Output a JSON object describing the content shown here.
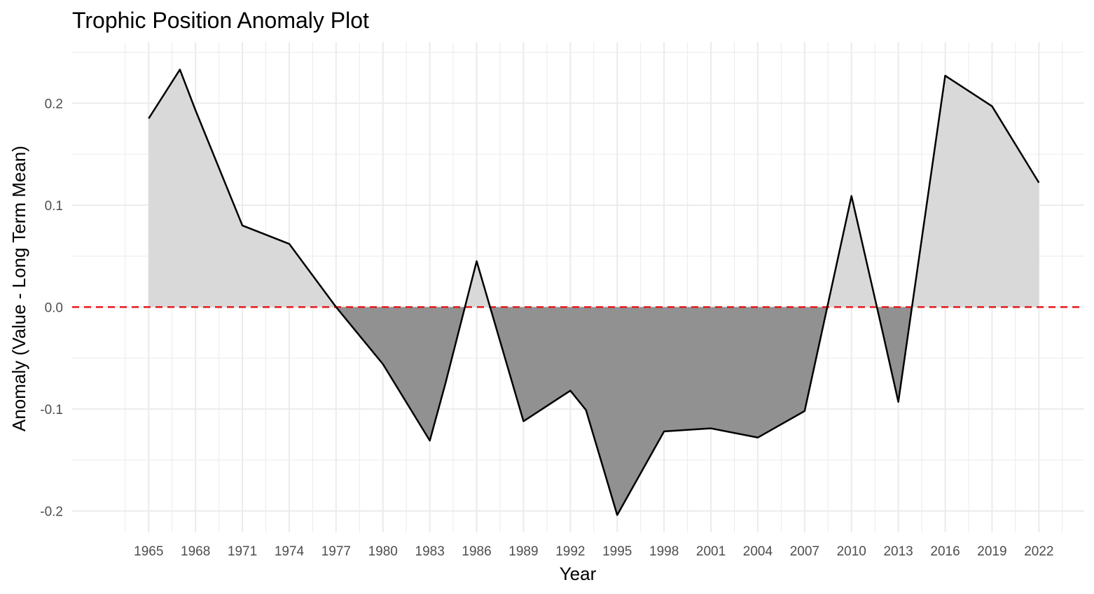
{
  "chart_data": {
    "type": "area",
    "title": "Trophic Position Anomaly Plot",
    "xlabel": "Year",
    "ylabel": "Anomaly (Value - Long Term Mean)",
    "xlim": [
      1960.1,
      2024.9
    ],
    "ylim": [
      -0.221,
      0.26
    ],
    "x_ticks": [
      1965,
      1968,
      1971,
      1974,
      1977,
      1980,
      1983,
      1986,
      1989,
      1992,
      1995,
      1998,
      2001,
      2004,
      2007,
      2010,
      2013,
      2016,
      2019,
      2022
    ],
    "y_ticks": [
      -0.2,
      -0.1,
      0.0,
      0.1,
      0.2
    ],
    "y_tick_labels": [
      "-0.2",
      "-0.1",
      "0.0",
      "0.1",
      "0.2"
    ],
    "grid": true,
    "reference_line": {
      "y": 0,
      "style": "dashed",
      "color": "#e41a1c"
    },
    "colors": {
      "line": "#000000",
      "positive_fill": "#d9d9d9",
      "negative_fill": "#919191",
      "grid": "#ebebeb"
    },
    "series": [
      {
        "x": [
          1965,
          1967,
          1968,
          1971,
          1974,
          1977,
          1980,
          1983,
          1984,
          1986,
          1989,
          1992,
          1993,
          1995,
          1998,
          2001,
          2004,
          2007,
          2010,
          2012,
          2013,
          2016,
          2019,
          2022
        ],
        "y": [
          0.185,
          0.233,
          0.193,
          0.08,
          0.062,
          0.0,
          -0.056,
          -0.131,
          -0.075,
          0.045,
          -0.112,
          -0.082,
          -0.101,
          -0.204,
          -0.122,
          -0.119,
          -0.128,
          -0.102,
          0.109,
          -0.025,
          -0.093,
          0.227,
          0.197,
          0.122
        ]
      }
    ]
  }
}
